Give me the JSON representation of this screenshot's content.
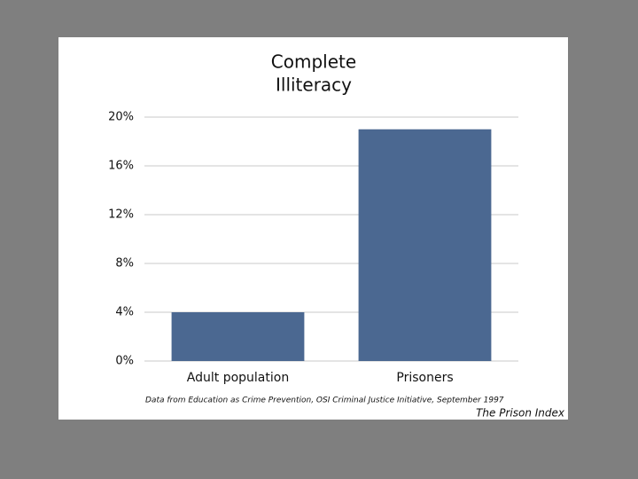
{
  "chart_data": {
    "type": "bar",
    "title": [
      "Complete",
      "Illiteracy"
    ],
    "categories": [
      "Adult population",
      "Prisoners"
    ],
    "values": [
      4,
      19
    ],
    "color": "#4b6891",
    "ylim": [
      0,
      20
    ],
    "yticks": [
      {
        "value": 0,
        "label": "0%"
      },
      {
        "value": 4,
        "label": "4%"
      },
      {
        "value": 8,
        "label": "8%"
      },
      {
        "value": 12,
        "label": "12%"
      },
      {
        "value": 16,
        "label": "16%"
      },
      {
        "value": 20,
        "label": "20%"
      }
    ],
    "grid": true,
    "note": "Data from Education as Crime Prevention, OSI Criminal Justice Initiative, September 1997",
    "source": "The Prison Index"
  }
}
